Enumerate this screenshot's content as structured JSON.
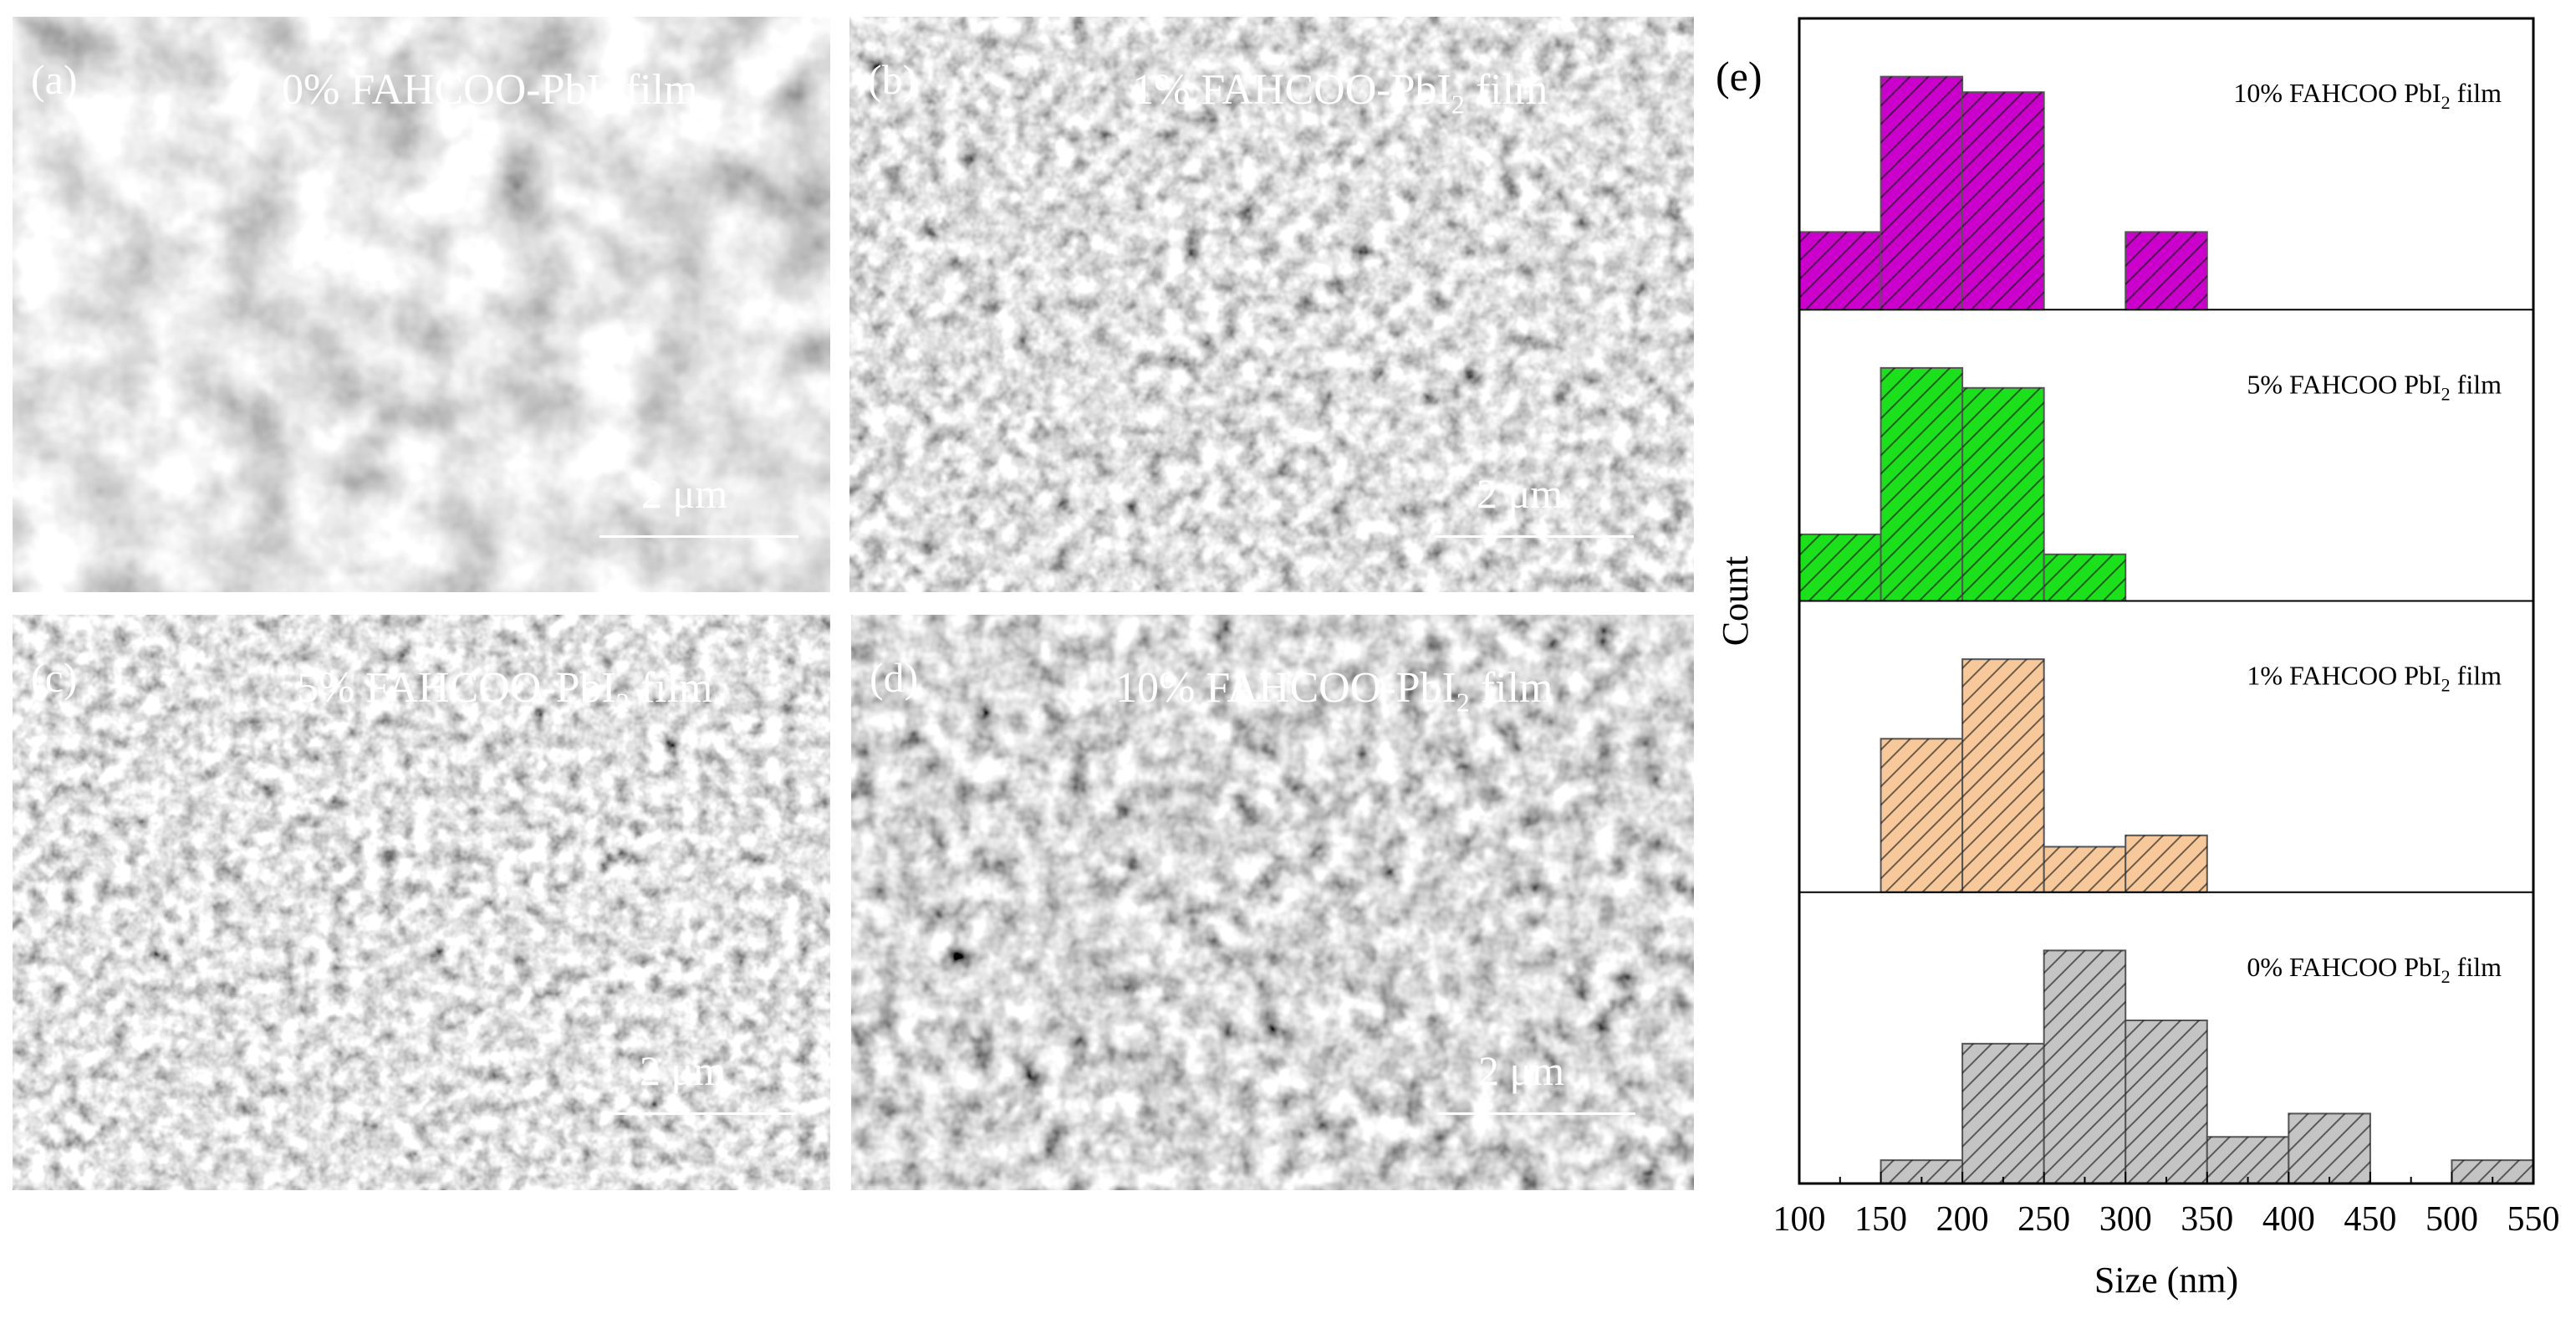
{
  "sem_panels": [
    {
      "letter": "(a)",
      "label": "0% FAHCOO-PbI",
      "sub": "2",
      "label_tail": " film",
      "scale": "2 μm"
    },
    {
      "letter": "(b)",
      "label": "1% FAHCOO-PbI",
      "sub": "2",
      "label_tail": " film",
      "scale": "2 μm"
    },
    {
      "letter": "(c)",
      "label": "5% FAHCOO-PbI",
      "sub": "2",
      "label_tail": " film",
      "scale": "2 μm"
    },
    {
      "letter": "(d)",
      "label": "10% FAHCOO-PbI",
      "sub": "2",
      "label_tail": " film",
      "scale": "2 μm"
    }
  ],
  "chart_data": {
    "type": "bar",
    "panel_letter": "(e)",
    "xlabel": "Size (nm)",
    "ylabel": "Count",
    "xlim": [
      100,
      550
    ],
    "xticks": [
      100,
      150,
      200,
      250,
      300,
      350,
      400,
      450,
      500,
      550
    ],
    "bin_edges": [
      100,
      150,
      200,
      250,
      300,
      350,
      400,
      450,
      500,
      550
    ],
    "grid": false,
    "series": [
      {
        "name": "10% FAHCOO PbI2 film",
        "label": "10% FAHCOO PbI",
        "sub": "2",
        "label_tail": " film",
        "color": "#cc00cc",
        "values": [
          1,
          3,
          2.8,
          0,
          1,
          0,
          0,
          0,
          0
        ]
      },
      {
        "name": "5% FAHCOO PbI2 film",
        "label": "5% FAHCOO PbI",
        "sub": "2",
        "label_tail": " film",
        "color": "#1de01d",
        "values": [
          1,
          3.5,
          3.2,
          0.7,
          0,
          0,
          0,
          0,
          0
        ]
      },
      {
        "name": "1% FAHCOO PbI2 film",
        "label": "1% FAHCOO PbI",
        "sub": "2",
        "label_tail": " film",
        "color": "#f7c89a",
        "values": [
          0,
          5.4,
          8.2,
          1.6,
          2,
          0,
          0,
          0,
          0
        ]
      },
      {
        "name": "0% FAHCOO PbI2 film",
        "label": "0% FAHCOO PbI",
        "sub": "2",
        "label_tail": " film",
        "color": "#c4c4c4",
        "values": [
          0,
          1,
          6,
          10,
          7,
          2,
          3,
          0,
          1
        ]
      }
    ]
  }
}
